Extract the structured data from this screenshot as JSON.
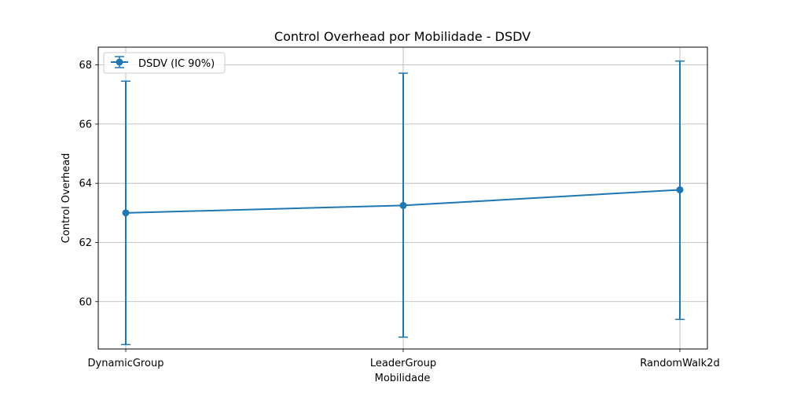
{
  "chart_data": {
    "type": "line",
    "title": "Control Overhead por Mobilidade - DSDV",
    "xlabel": "Mobilidade",
    "ylabel": "Control Overhead",
    "categories": [
      "DynamicGroup",
      "LeaderGroup",
      "RandomWalk2d"
    ],
    "series": [
      {
        "name": "DSDV (IC 90%)",
        "values": [
          63.0,
          63.25,
          63.78
        ],
        "err_low": [
          58.55,
          58.8,
          59.4
        ],
        "err_high": [
          67.45,
          67.72,
          68.13
        ],
        "color": "#1f77b4"
      }
    ],
    "ylim": [
      58.4,
      68.6
    ],
    "yticks": [
      60,
      62,
      64,
      66,
      68
    ],
    "grid": true,
    "legend_position": "top-left"
  }
}
